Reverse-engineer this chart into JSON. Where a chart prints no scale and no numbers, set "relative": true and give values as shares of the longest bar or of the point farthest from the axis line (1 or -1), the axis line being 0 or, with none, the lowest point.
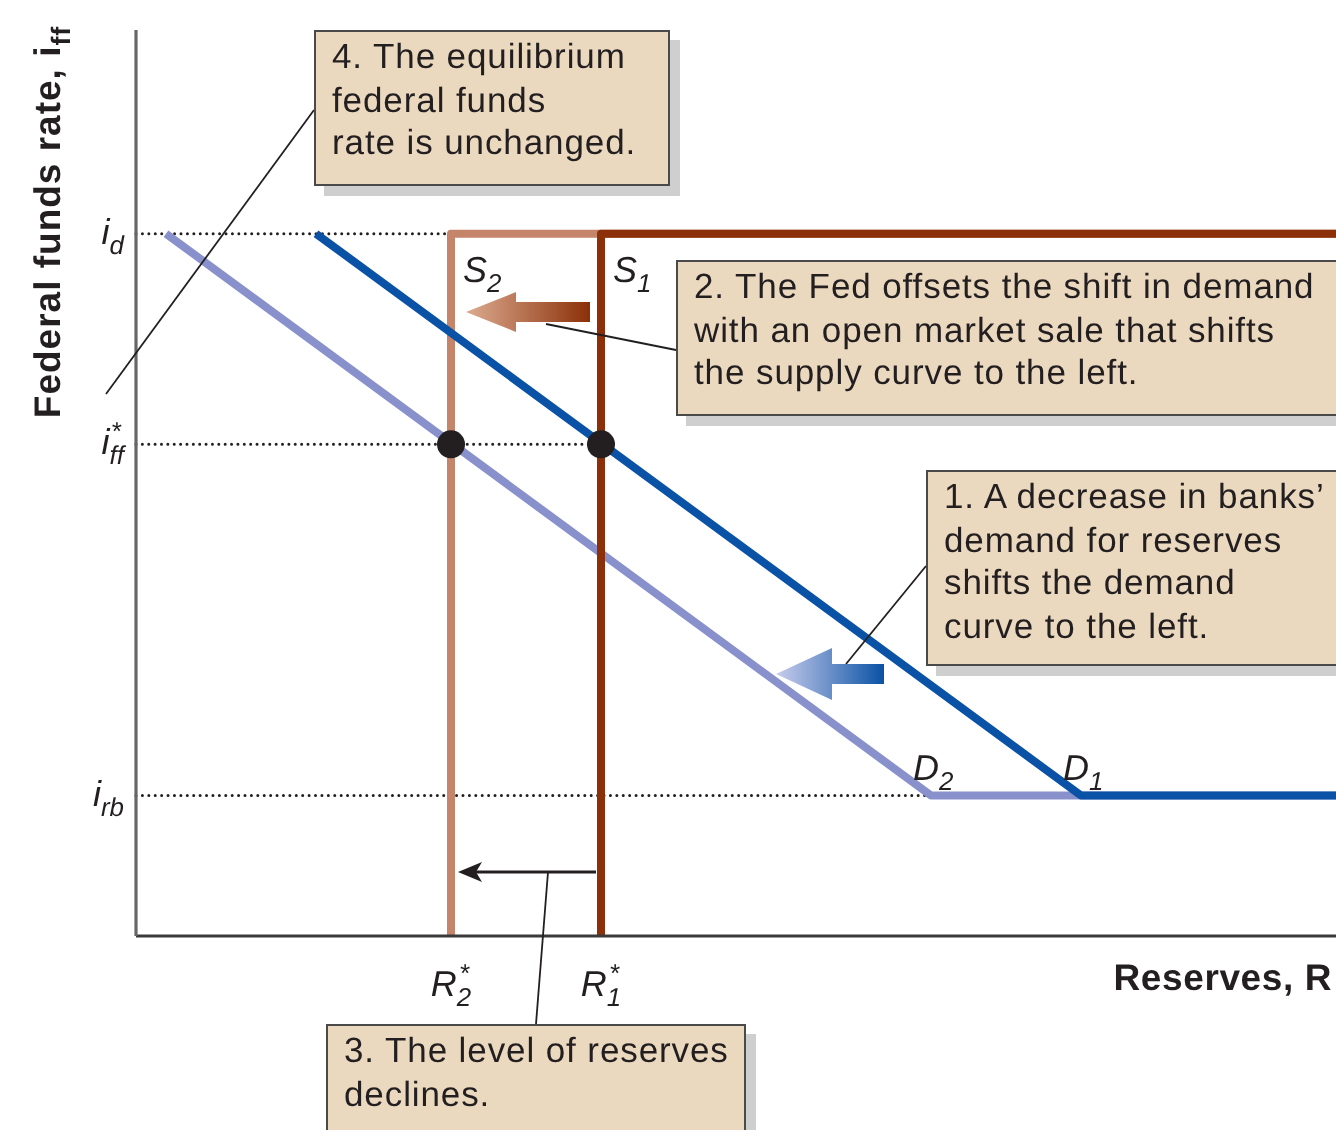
{
  "chart_data": {
    "type": "line",
    "relative": true,
    "xlabel": "Reserves, R",
    "ylabel": "Federal funds rate, i$_{ff}$",
    "ylim": [
      0,
      1.29
    ],
    "categories": [
      null,
      null,
      null,
      null,
      null,
      null,
      null,
      null,
      null,
      null,
      null,
      null,
      null,
      null,
      null,
      null,
      null,
      null,
      null,
      null,
      null,
      "R$_{2}$$^{*}$",
      null,
      null,
      null,
      null,
      null,
      null,
      null,
      null,
      null,
      "R$_{1}$$^{*}$",
      null,
      null,
      null,
      null,
      null,
      null,
      null,
      null,
      null,
      null,
      null,
      null,
      null,
      null,
      null,
      null,
      null,
      null,
      null,
      null,
      null,
      null,
      null,
      null,
      null,
      null,
      null,
      null,
      null,
      null,
      null,
      null,
      null,
      null,
      null,
      null,
      null,
      null,
      null,
      null,
      null,
      null,
      null,
      null,
      null,
      null,
      null,
      null,
      null
    ],
    "series": [
      {
        "name": "i$_{d}$",
        "line_style": "dotted",
        "color": "#231f20",
        "values": [
          1,
          null,
          null,
          null,
          null,
          null,
          null,
          null,
          null,
          null,
          null,
          null,
          null,
          null,
          null,
          null,
          null,
          null,
          null,
          null,
          null,
          1,
          null,
          null,
          null,
          null,
          null,
          null,
          null,
          null,
          null,
          null,
          null,
          null,
          null,
          null,
          null,
          null,
          null,
          null,
          null,
          null,
          null,
          null,
          null,
          null,
          null,
          null,
          null,
          null,
          null,
          null,
          null,
          null,
          null,
          null,
          null,
          null,
          null,
          null,
          null,
          null,
          null,
          null,
          null,
          null,
          null,
          null,
          null,
          null,
          null,
          null,
          null,
          null,
          null,
          null,
          null,
          null,
          null,
          null,
          null
        ]
      },
      {
        "name": "i$_{ff}$$^{*}$",
        "line_style": "dotted",
        "color": "#231f20",
        "values": [
          0.7,
          null,
          null,
          null,
          null,
          null,
          null,
          null,
          null,
          null,
          null,
          null,
          null,
          null,
          null,
          null,
          null,
          null,
          null,
          null,
          null,
          null,
          null,
          null,
          null,
          null,
          null,
          null,
          null,
          null,
          null,
          0.7,
          null,
          null,
          null,
          null,
          null,
          null,
          null,
          null,
          null,
          null,
          null,
          null,
          null,
          null,
          null,
          null,
          null,
          null,
          null,
          null,
          null,
          null,
          null,
          null,
          null,
          null,
          null,
          null,
          null,
          null,
          null,
          null,
          null,
          null,
          null,
          null,
          null,
          null,
          null,
          null,
          null,
          null,
          null,
          null,
          null,
          null,
          null,
          null,
          null
        ]
      },
      {
        "name": "i$_{rb}$",
        "line_style": "dotted",
        "color": "#231f20",
        "values": [
          0.2,
          null,
          null,
          null,
          null,
          null,
          null,
          null,
          null,
          null,
          null,
          null,
          null,
          null,
          null,
          null,
          null,
          null,
          null,
          null,
          null,
          null,
          null,
          null,
          null,
          null,
          null,
          null,
          null,
          null,
          null,
          null,
          null,
          null,
          null,
          null,
          null,
          null,
          null,
          null,
          null,
          null,
          null,
          null,
          null,
          null,
          null,
          null,
          null,
          null,
          null,
          null,
          null,
          0.2,
          null,
          null,
          null,
          null,
          null,
          null,
          null,
          null,
          null,
          null,
          null,
          null,
          null,
          null,
          null,
          null,
          null,
          null,
          null,
          null,
          null,
          null,
          null,
          null,
          null,
          null,
          null
        ]
      },
      {
        "name": "D$_{2}$",
        "color": "#8891cc",
        "values": [
          null,
          null,
          1,
          null,
          null,
          null,
          null,
          null,
          null,
          null,
          null,
          null,
          null,
          null,
          null,
          null,
          null,
          null,
          null,
          null,
          null,
          null,
          null,
          null,
          null,
          null,
          null,
          null,
          null,
          null,
          null,
          null,
          null,
          null,
          null,
          null,
          null,
          null,
          null,
          null,
          null,
          null,
          null,
          null,
          null,
          null,
          null,
          null,
          null,
          null,
          null,
          null,
          null,
          0.2,
          null,
          null,
          null,
          null,
          null,
          null,
          null,
          null,
          null,
          null,
          null,
          null,
          null,
          null,
          null,
          null,
          null,
          null,
          null,
          null,
          null,
          null,
          null,
          null,
          null,
          null,
          0.2
        ]
      },
      {
        "type": "step",
        "name": "S$_{2}$",
        "color": "#c4856a",
        "values": [
          null,
          null,
          null,
          null,
          null,
          null,
          null,
          null,
          null,
          null,
          null,
          null,
          null,
          null,
          null,
          null,
          null,
          null,
          null,
          null,
          null,
          0,
          null,
          null,
          null,
          null,
          null,
          null,
          null,
          null,
          null,
          null,
          null,
          null,
          null,
          null,
          null,
          null,
          null,
          null,
          null,
          null,
          null,
          null,
          null,
          null,
          null,
          null,
          null,
          null,
          null,
          null,
          null,
          null,
          null,
          null,
          null,
          null,
          null,
          null,
          null,
          null,
          null,
          null,
          null,
          null,
          null,
          null,
          null,
          null,
          null,
          null,
          null,
          null,
          null,
          null,
          null,
          null,
          null,
          null,
          1
        ]
      },
      {
        "type": "step",
        "name": "S$_{1}$",
        "color": "#8b3009",
        "values": [
          null,
          null,
          null,
          null,
          null,
          null,
          null,
          null,
          null,
          null,
          null,
          null,
          null,
          null,
          null,
          null,
          null,
          null,
          null,
          null,
          null,
          null,
          null,
          null,
          null,
          null,
          null,
          null,
          null,
          null,
          null,
          0,
          null,
          null,
          null,
          null,
          null,
          null,
          null,
          null,
          null,
          null,
          null,
          null,
          null,
          null,
          null,
          null,
          null,
          null,
          null,
          null,
          null,
          null,
          null,
          null,
          null,
          null,
          null,
          null,
          null,
          null,
          null,
          null,
          null,
          null,
          null,
          null,
          null,
          null,
          null,
          null,
          null,
          null,
          null,
          null,
          null,
          null,
          null,
          null,
          1
        ]
      },
      {
        "name": "D$_{1}$",
        "color": "#0a52a5",
        "values": [
          null,
          null,
          null,
          null,
          null,
          null,
          null,
          null,
          null,
          null,
          null,
          null,
          1,
          null,
          null,
          null,
          null,
          null,
          null,
          null,
          null,
          null,
          null,
          null,
          null,
          null,
          null,
          null,
          null,
          null,
          null,
          null,
          null,
          null,
          null,
          null,
          null,
          null,
          null,
          null,
          null,
          null,
          null,
          null,
          null,
          null,
          null,
          null,
          null,
          null,
          null,
          null,
          null,
          null,
          null,
          null,
          null,
          null,
          null,
          null,
          null,
          null,
          null,
          0.2,
          null,
          null,
          null,
          null,
          null,
          null,
          null,
          null,
          null,
          null,
          null,
          null,
          null,
          null,
          null,
          null,
          0.2
        ]
      },
      {
        "type": "scatter",
        "marker": "circle",
        "color": "#231f20",
        "values": [
          null,
          null,
          null,
          null,
          null,
          null,
          null,
          null,
          null,
          null,
          null,
          null,
          null,
          null,
          null,
          null,
          null,
          null,
          null,
          null,
          null,
          0.7,
          null,
          null,
          null,
          null,
          null,
          null,
          null,
          null,
          null,
          0.7,
          null,
          null,
          null,
          null,
          null,
          null,
          null,
          null,
          null,
          null,
          null,
          null,
          null,
          null,
          null,
          null,
          null,
          null,
          null,
          null,
          null,
          null,
          null,
          null,
          null,
          null,
          null,
          null,
          null,
          null,
          null,
          null,
          null,
          null,
          null,
          null,
          null,
          null,
          null,
          null,
          null,
          null,
          null,
          null,
          null,
          null,
          null,
          null,
          null
        ]
      }
    ],
    "annotations": [
      "1. A decrease in banks’\ndemand for reserves\nshifts the demand\ncurve to the left.",
      "2. The Fed offsets the shift in demand\nwith an open market sale that shifts\nthe supply curve to the left.",
      "3. The level of reserves\ndeclines.",
      "4. The equilibrium\nfederal funds\nrate is unchanged."
    ]
  }
}
